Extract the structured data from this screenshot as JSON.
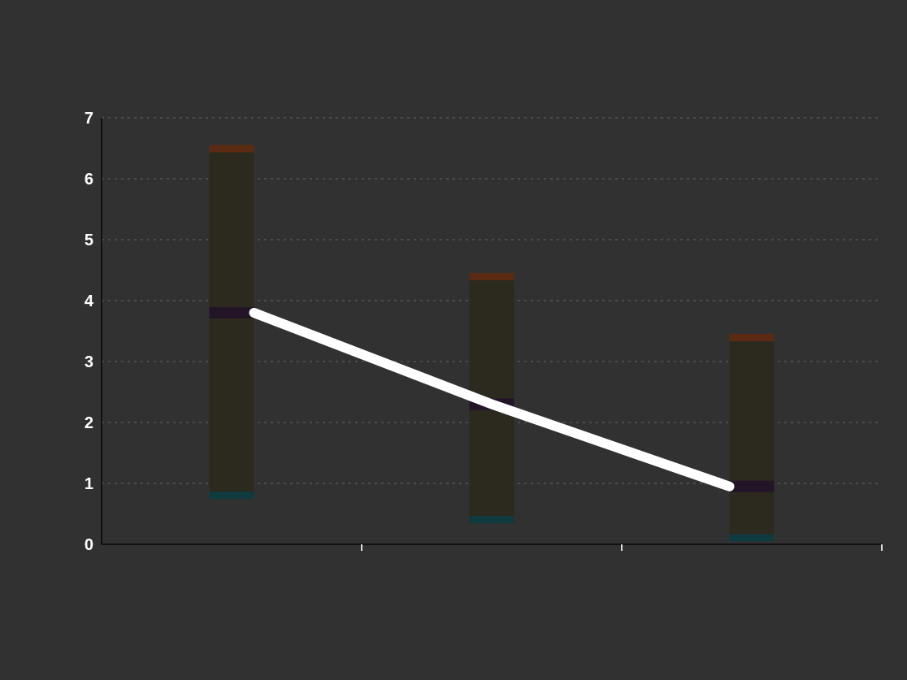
{
  "chart_data": {
    "type": "bar",
    "title": "",
    "xlabel": "",
    "ylabel": "",
    "categories": [
      "",
      "",
      ""
    ],
    "series": [
      {
        "values_low": [
          0.8,
          0.4,
          0.1
        ]
      },
      {
        "values_high": [
          6.5,
          4.4,
          3.4
        ]
      },
      {
        "values_mid": [
          3.8,
          2.3,
          0.95
        ]
      }
    ],
    "range_labels": [
      "",
      "",
      ""
    ],
    "ylim": [
      0,
      7
    ],
    "yticks": [
      0,
      1,
      2,
      3,
      4,
      5,
      6,
      7
    ],
    "grid": true,
    "colors": {
      "background": "#313131",
      "bar": "#2c291f",
      "median": "#231428",
      "top_cap": "#5a2a12",
      "bottom_cap": "#0e3a40",
      "line": "#ffffff",
      "grid": "#555555",
      "text": "#ffffff"
    }
  },
  "source": ""
}
